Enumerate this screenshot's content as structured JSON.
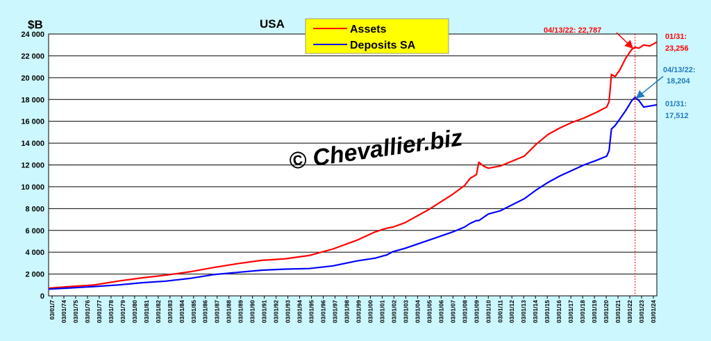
{
  "chart_data": {
    "type": "line",
    "title": "USA",
    "ylabel": "$B",
    "ylim": [
      0,
      24000
    ],
    "yticks": [
      0,
      2000,
      4000,
      6000,
      8000,
      10000,
      12000,
      14000,
      16000,
      18000,
      20000,
      22000,
      24000
    ],
    "ytick_labels": [
      "0",
      "2 000",
      "4 000",
      "6 000",
      "8 000",
      "10 000",
      "12 000",
      "14 000",
      "16 000",
      "18 000",
      "20 000",
      "22 000",
      "24 000"
    ],
    "x_tick_labels": [
      "03/01/73",
      "03/01/74",
      "03/01/75",
      "03/01/76",
      "03/01/77",
      "03/01/78",
      "03/01/79",
      "03/01/80",
      "03/01/81",
      "03/01/82",
      "03/01/83",
      "03/01/84",
      "03/01/85",
      "03/01/86",
      "03/01/87",
      "03/01/88",
      "03/01/89",
      "03/01/90",
      "03/01/91",
      "03/01/92",
      "03/01/93",
      "03/01/94",
      "03/01/95",
      "03/01/96",
      "03/01/97",
      "03/01/98",
      "03/01/99",
      "03/01/00",
      "03/01/01",
      "03/01/02",
      "03/01/03",
      "03/01/04",
      "03/01/05",
      "03/01/06",
      "03/01/07",
      "03/01/08",
      "03/01/09",
      "03/01/10",
      "03/01/11",
      "03/01/12",
      "03/01/13",
      "03/01/14",
      "03/01/15",
      "03/01/16",
      "03/01/17",
      "03/01/18",
      "03/01/19",
      "03/01/20",
      "03/01/21",
      "03/01/22",
      "03/01/23",
      "03/01/24"
    ],
    "x_tick_labels_display": [
      "03/01/7",
      "03/01/74",
      "03/01/75",
      "03/01/76",
      "03/01/77",
      "03/01/78",
      "03/01/79",
      "03/01/80",
      "03/01/81",
      "03/01/82",
      "03/01/83",
      "03/01/84",
      "03/01/85",
      "03/01/86",
      "03/01/87",
      "03/01/88",
      "03/01/89",
      "03/01/90",
      "03/01/91",
      "03/01/92",
      "03/01/93",
      "03/01/94",
      "03/01/95",
      "03/01/96",
      "03/01/97",
      "03/01/98",
      "03/01/99",
      "03/01/00",
      "03/01/01",
      "03/01/02",
      "03/01/03",
      "03/01/04",
      "03/01/05",
      "03/01/06",
      "03/01/07",
      "03/01/08",
      "03/01/09",
      "03/01/10",
      "03/01/11",
      "03/01/12",
      "03/01/13",
      "03/01/14",
      "03/01/15",
      "03/01/16",
      "03/01/17",
      "03/01/18",
      "03/01/19",
      "03/01/20",
      "03/01/21",
      "03/01/22",
      "03/01/23",
      "03/01/24"
    ],
    "grid": true,
    "legend_position": "top-center",
    "x": [
      1973.2,
      1975,
      1977,
      1979,
      1981,
      1983,
      1985,
      1987,
      1989,
      1991,
      1993,
      1995,
      1997,
      1999,
      2000.5,
      2001.5,
      2002,
      2003,
      2005,
      2007,
      2008,
      2008.5,
      2009,
      2009.2,
      2009.6,
      2010,
      2011,
      2013,
      2014,
      2015,
      2016,
      2017,
      2018,
      2019,
      2019.9,
      2020.1,
      2020.3,
      2020.6,
      2021,
      2021.5,
      2022,
      2022.28,
      2022.6,
      2023,
      2023.5,
      2024.08
    ],
    "series": [
      {
        "name": "Assets",
        "color": "#ff0000",
        "values": [
          700,
          850,
          1000,
          1350,
          1650,
          1900,
          2200,
          2600,
          2950,
          3250,
          3400,
          3700,
          4300,
          5100,
          5850,
          6200,
          6300,
          6700,
          7900,
          9300,
          10100,
          10800,
          11100,
          12250,
          11900,
          11700,
          11900,
          12800,
          13900,
          14800,
          15400,
          15900,
          16300,
          16800,
          17300,
          17800,
          20300,
          20100,
          20700,
          21800,
          22600,
          22787,
          22700,
          23000,
          22900,
          23256
        ]
      },
      {
        "name": "Deposits SA",
        "color": "#0000ff",
        "values": [
          620,
          720,
          850,
          1000,
          1200,
          1350,
          1600,
          1950,
          2150,
          2350,
          2450,
          2500,
          2750,
          3200,
          3450,
          3750,
          4050,
          4350,
          5100,
          5850,
          6300,
          6650,
          6900,
          6900,
          7200,
          7500,
          7800,
          8900,
          9700,
          10400,
          11000,
          11500,
          12000,
          12400,
          12800,
          13300,
          15300,
          15600,
          16200,
          17000,
          17900,
          18204,
          17900,
          17300,
          17400,
          17512
        ]
      }
    ],
    "annotations": [
      {
        "text": "04/13/22: 22,787",
        "color": "#ff0000"
      },
      {
        "text": "01/31:",
        "color": "#ff0000"
      },
      {
        "text": "23,256",
        "color": "#ff0000"
      },
      {
        "text": "04/13/22:",
        "color": "#1f7ac0"
      },
      {
        "text": "18,204",
        "color": "#1f7ac0"
      },
      {
        "text": "01/31:",
        "color": "#1f7ac0"
      },
      {
        "text": "17,512",
        "color": "#1f7ac0"
      }
    ],
    "watermark": "© Chevallier.biz"
  }
}
